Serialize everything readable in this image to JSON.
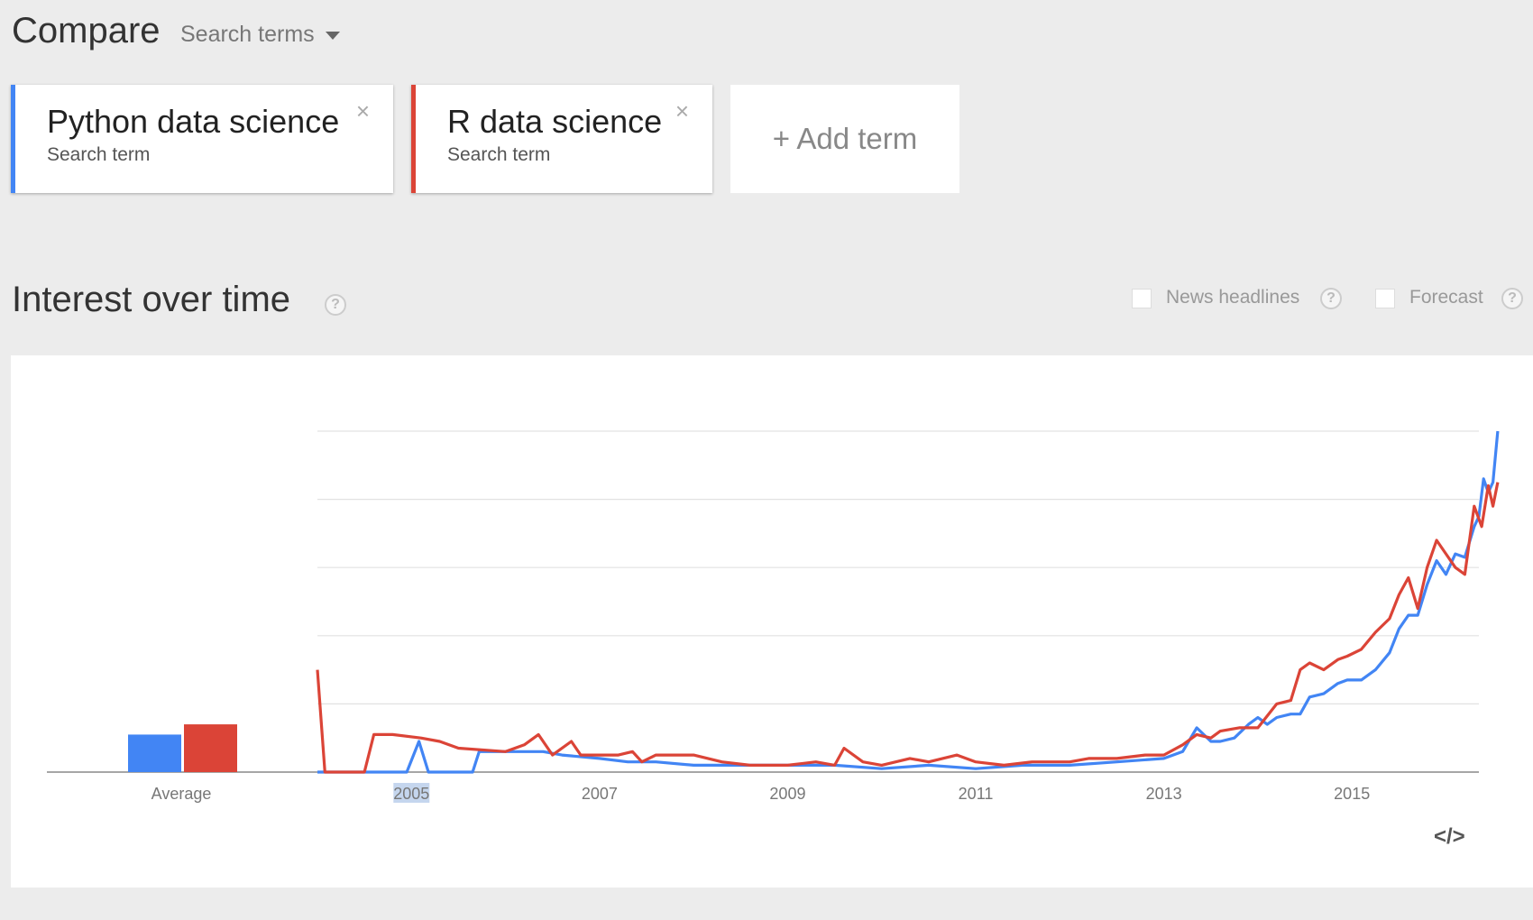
{
  "header": {
    "title": "Compare",
    "dropdown_label": "Search terms"
  },
  "terms": [
    {
      "name": "Python data science",
      "sub": "Search term",
      "color": "#4285f4"
    },
    {
      "name": "R data science",
      "sub": "Search term",
      "color": "#db4437"
    }
  ],
  "add_term_label": "+ Add term",
  "section": {
    "title": "Interest over time",
    "news_label": "News headlines",
    "forecast_label": "Forecast",
    "help_glyph": "?"
  },
  "embed_glyph": "</>",
  "chart_data": {
    "type": "line",
    "title": "",
    "xlabel": "",
    "ylabel": "",
    "x_ticks": [
      "2005",
      "2007",
      "2009",
      "2011",
      "2013",
      "2015"
    ],
    "x_range": [
      2004.0,
      2016.35
    ],
    "ylim": [
      0,
      100
    ],
    "grid": true,
    "average": {
      "label": "Average",
      "values": [
        11,
        14
      ]
    },
    "series": [
      {
        "name": "Python data science",
        "color": "#4285f4",
        "points": [
          [
            2004.0,
            0
          ],
          [
            2004.5,
            0
          ],
          [
            2004.95,
            0
          ],
          [
            2005.08,
            9
          ],
          [
            2005.18,
            0
          ],
          [
            2005.4,
            0
          ],
          [
            2005.65,
            0
          ],
          [
            2005.72,
            6
          ],
          [
            2006.0,
            6
          ],
          [
            2006.4,
            6
          ],
          [
            2006.6,
            5
          ],
          [
            2007.0,
            4
          ],
          [
            2007.3,
            3
          ],
          [
            2007.6,
            3
          ],
          [
            2008.0,
            2
          ],
          [
            2008.5,
            2
          ],
          [
            2009.0,
            2
          ],
          [
            2009.5,
            2
          ],
          [
            2010.0,
            1
          ],
          [
            2010.5,
            2
          ],
          [
            2011.0,
            1
          ],
          [
            2011.5,
            2
          ],
          [
            2012.0,
            2
          ],
          [
            2012.5,
            3
          ],
          [
            2013.0,
            4
          ],
          [
            2013.2,
            6
          ],
          [
            2013.35,
            13
          ],
          [
            2013.5,
            9
          ],
          [
            2013.6,
            9
          ],
          [
            2013.75,
            10
          ],
          [
            2013.9,
            14
          ],
          [
            2014.0,
            16
          ],
          [
            2014.1,
            14
          ],
          [
            2014.2,
            16
          ],
          [
            2014.35,
            17
          ],
          [
            2014.45,
            17
          ],
          [
            2014.55,
            22
          ],
          [
            2014.7,
            23
          ],
          [
            2014.85,
            26
          ],
          [
            2014.95,
            27
          ],
          [
            2015.1,
            27
          ],
          [
            2015.25,
            30
          ],
          [
            2015.4,
            35
          ],
          [
            2015.5,
            42
          ],
          [
            2015.6,
            46
          ],
          [
            2015.7,
            46
          ],
          [
            2015.8,
            55
          ],
          [
            2015.9,
            62
          ],
          [
            2016.0,
            58
          ],
          [
            2016.1,
            64
          ],
          [
            2016.2,
            63
          ],
          [
            2016.3,
            72
          ],
          [
            2016.35,
            75
          ],
          [
            2016.4,
            86
          ],
          [
            2016.45,
            82
          ],
          [
            2016.5,
            85
          ],
          [
            2016.55,
            100
          ]
        ]
      },
      {
        "name": "R data science",
        "color": "#db4437",
        "points": [
          [
            2004.0,
            30
          ],
          [
            2004.08,
            0
          ],
          [
            2004.5,
            0
          ],
          [
            2004.6,
            11
          ],
          [
            2004.8,
            11
          ],
          [
            2005.1,
            10
          ],
          [
            2005.3,
            9
          ],
          [
            2005.5,
            7
          ],
          [
            2006.0,
            6
          ],
          [
            2006.2,
            8
          ],
          [
            2006.35,
            11
          ],
          [
            2006.5,
            5
          ],
          [
            2006.7,
            9
          ],
          [
            2006.8,
            5
          ],
          [
            2007.0,
            5
          ],
          [
            2007.2,
            5
          ],
          [
            2007.35,
            6
          ],
          [
            2007.45,
            3
          ],
          [
            2007.6,
            5
          ],
          [
            2008.0,
            5
          ],
          [
            2008.3,
            3
          ],
          [
            2008.6,
            2
          ],
          [
            2009.0,
            2
          ],
          [
            2009.3,
            3
          ],
          [
            2009.5,
            2
          ],
          [
            2009.6,
            7
          ],
          [
            2009.8,
            3
          ],
          [
            2010.0,
            2
          ],
          [
            2010.3,
            4
          ],
          [
            2010.5,
            3
          ],
          [
            2010.8,
            5
          ],
          [
            2011.0,
            3
          ],
          [
            2011.3,
            2
          ],
          [
            2011.6,
            3
          ],
          [
            2012.0,
            3
          ],
          [
            2012.2,
            4
          ],
          [
            2012.5,
            4
          ],
          [
            2012.8,
            5
          ],
          [
            2013.0,
            5
          ],
          [
            2013.2,
            8
          ],
          [
            2013.35,
            11
          ],
          [
            2013.5,
            10
          ],
          [
            2013.6,
            12
          ],
          [
            2013.8,
            13
          ],
          [
            2014.0,
            13
          ],
          [
            2014.2,
            20
          ],
          [
            2014.35,
            21
          ],
          [
            2014.45,
            30
          ],
          [
            2014.55,
            32
          ],
          [
            2014.7,
            30
          ],
          [
            2014.85,
            33
          ],
          [
            2014.95,
            34
          ],
          [
            2015.1,
            36
          ],
          [
            2015.25,
            41
          ],
          [
            2015.4,
            45
          ],
          [
            2015.5,
            52
          ],
          [
            2015.6,
            57
          ],
          [
            2015.7,
            48
          ],
          [
            2015.8,
            60
          ],
          [
            2015.9,
            68
          ],
          [
            2016.0,
            64
          ],
          [
            2016.1,
            60
          ],
          [
            2016.2,
            58
          ],
          [
            2016.3,
            78
          ],
          [
            2016.38,
            72
          ],
          [
            2016.45,
            84
          ],
          [
            2016.5,
            78
          ],
          [
            2016.55,
            85
          ]
        ]
      }
    ]
  }
}
